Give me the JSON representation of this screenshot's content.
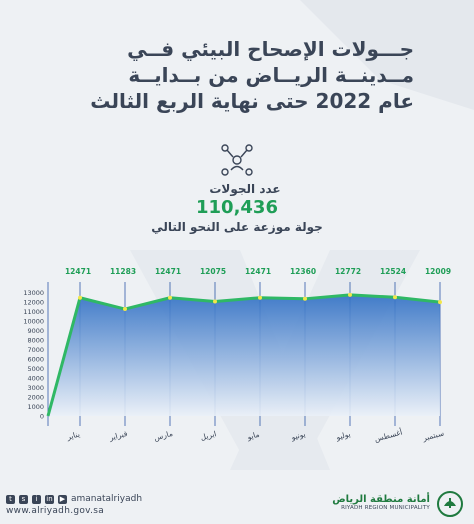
{
  "title": {
    "line1": "جـــولات الإصحاح البيئي فــي",
    "line2": "مــدينــة الريــاض من بــدايــة",
    "line3": "عام 2022 حتى نهاية الربع الثالث"
  },
  "summary": {
    "label": "عدد الجولات",
    "value": "110,436",
    "subtitle": "جولة موزعة على النحو التالي"
  },
  "chart_data": {
    "type": "area",
    "categories": [
      "يناير",
      "فبراير",
      "مارس",
      "ابريل",
      "مايو",
      "يونيو",
      "يوليو",
      "أغسطس",
      "سبتمبر"
    ],
    "values": [
      12471,
      11283,
      12471,
      12075,
      12471,
      12360,
      12772,
      12524,
      12009
    ],
    "data_labels": [
      "12471",
      "11283",
      "12471",
      "12075",
      "12471",
      "12360",
      "12772",
      "12524",
      "12009"
    ],
    "y_ticks": [
      "13000",
      "12000",
      "11000",
      "10000",
      "9000",
      "8000",
      "7000",
      "6000",
      "5000",
      "4000",
      "3000",
      "2000",
      "1000",
      "0"
    ],
    "ylim": [
      0,
      13500
    ],
    "grid": "vertical",
    "colors": {
      "line": "#2fb865",
      "fill_top": "#2f6fc4",
      "fill_bottom": "#eaf0f8",
      "label": "#1f9e57",
      "marker": "#f2e64a"
    }
  },
  "footer": {
    "handle": "amanatalriyadh",
    "url": "www.alriyadh.gov.sa",
    "org_ar": "أمانة منطقة الرياض",
    "org_en": "RIYADH REGION MUNICIPALITY"
  }
}
